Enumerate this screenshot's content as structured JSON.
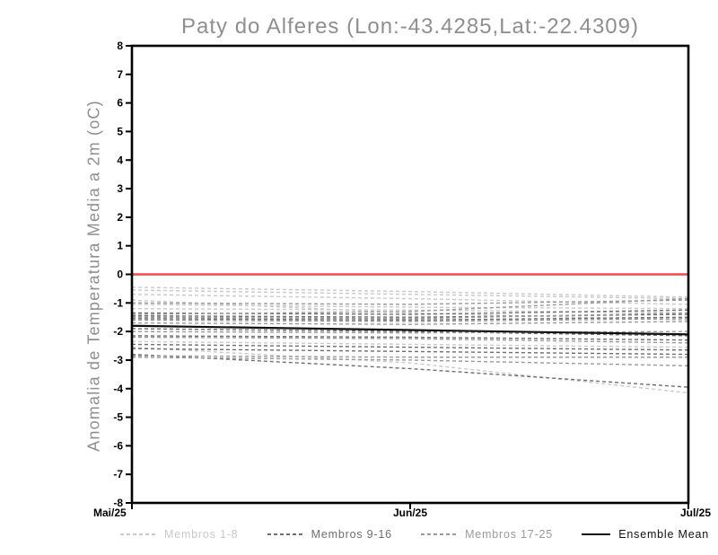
{
  "chart_data": {
    "type": "line",
    "title": "Paty do Alferes (Lon:-43.4285,Lat:-22.4309)",
    "ylabel": "Anomalia de Temperatura Media a 2m (oC)",
    "xlabel": "",
    "ylim": [
      -8,
      8
    ],
    "yticks": [
      8,
      7,
      6,
      5,
      4,
      3,
      2,
      1,
      0,
      -1,
      -2,
      -3,
      -4,
      -5,
      -6,
      -7,
      -8
    ],
    "x_ticklabels": [
      "Mai/25",
      "Jun/25",
      "Jul/25"
    ],
    "grid": false,
    "legend_position": "bottom",
    "zero_line": {
      "value": 0,
      "color": "#f4494b"
    },
    "colors": {
      "members_1_8": "#c9c9c9",
      "members_9_16": "#6f6f6f",
      "members_17_25": "#9a9a9a",
      "ensemble_mean": "#111111",
      "axis": "#000000",
      "title_text": "#8f8f8f"
    },
    "series": [
      {
        "name": "Membro 1",
        "group": "members_1_8",
        "values": [
          -0.45,
          -0.6,
          -0.8
        ]
      },
      {
        "name": "Membro 2",
        "group": "members_1_8",
        "values": [
          -0.55,
          -0.7,
          -0.85
        ]
      },
      {
        "name": "Membro 3",
        "group": "members_1_8",
        "values": [
          -0.7,
          -0.85,
          -1.05
        ]
      },
      {
        "name": "Membro 4",
        "group": "members_1_8",
        "values": [
          -0.9,
          -1.35,
          -1.6
        ]
      },
      {
        "name": "Membro 5",
        "group": "members_1_8",
        "values": [
          -1.05,
          -1.15,
          -1.2
        ]
      },
      {
        "name": "Membro 6",
        "group": "members_1_8",
        "values": [
          -1.2,
          -1.25,
          -1.35
        ]
      },
      {
        "name": "Membro 7",
        "group": "members_1_8",
        "values": [
          -2.35,
          -2.45,
          -2.55
        ]
      },
      {
        "name": "Membro 8",
        "group": "members_1_8",
        "values": [
          -2.55,
          -3.1,
          -4.15
        ]
      },
      {
        "name": "Membro 9",
        "group": "members_9_16",
        "values": [
          -1.35,
          -1.4,
          -1.25
        ]
      },
      {
        "name": "Membro 10",
        "group": "members_9_16",
        "values": [
          -1.45,
          -1.5,
          -1.4
        ]
      },
      {
        "name": "Membro 11",
        "group": "members_9_16",
        "values": [
          -1.55,
          -1.6,
          -1.5
        ]
      },
      {
        "name": "Membro 12",
        "group": "members_9_16",
        "values": [
          -1.9,
          -2.0,
          -2.15
        ]
      },
      {
        "name": "Membro 13",
        "group": "members_9_16",
        "values": [
          -2.15,
          -2.2,
          -2.3
        ]
      },
      {
        "name": "Membro 14",
        "group": "members_9_16",
        "values": [
          -2.45,
          -2.55,
          -2.65
        ]
      },
      {
        "name": "Membro 15",
        "group": "members_9_16",
        "values": [
          -2.6,
          -2.7,
          -2.8
        ]
      },
      {
        "name": "Membro 16",
        "group": "members_9_16",
        "values": [
          -2.8,
          -3.3,
          -3.95
        ]
      },
      {
        "name": "Membro 17",
        "group": "members_17_25",
        "values": [
          -1.0,
          -1.05,
          -0.9
        ]
      },
      {
        "name": "Membro 18",
        "group": "members_17_25",
        "values": [
          -1.4,
          -1.3,
          -0.85
        ]
      },
      {
        "name": "Membro 19",
        "group": "members_17_25",
        "values": [
          -1.5,
          -1.55,
          -1.35
        ]
      },
      {
        "name": "Membro 20",
        "group": "members_17_25",
        "values": [
          -1.6,
          -1.65,
          -1.55
        ]
      },
      {
        "name": "Membro 21",
        "group": "members_17_25",
        "values": [
          -1.7,
          -1.75,
          -1.65
        ]
      },
      {
        "name": "Membro 22",
        "group": "members_17_25",
        "values": [
          -2.0,
          -2.05,
          -2.0
        ]
      },
      {
        "name": "Membro 23",
        "group": "members_17_25",
        "values": [
          -2.2,
          -2.25,
          -2.4
        ]
      },
      {
        "name": "Membro 24",
        "group": "members_17_25",
        "values": [
          -2.85,
          -2.9,
          -2.9
        ]
      },
      {
        "name": "Membro 25",
        "group": "members_17_25",
        "values": [
          -2.9,
          -3.0,
          -3.2
        ]
      }
    ],
    "ensemble_mean": {
      "name": "Ensemble Mean",
      "values": [
        -1.8,
        -1.95,
        -2.1
      ]
    }
  },
  "legend": {
    "items": [
      {
        "label": "Membros 1-8",
        "color_key": "members_1_8",
        "style": "dashed"
      },
      {
        "label": "Membros 9-16",
        "color_key": "members_9_16",
        "style": "dashed"
      },
      {
        "label": "Membros 17-25",
        "color_key": "members_17_25",
        "style": "dashed"
      },
      {
        "label": "Ensemble Mean",
        "color_key": "ensemble_mean",
        "style": "solid"
      }
    ]
  }
}
